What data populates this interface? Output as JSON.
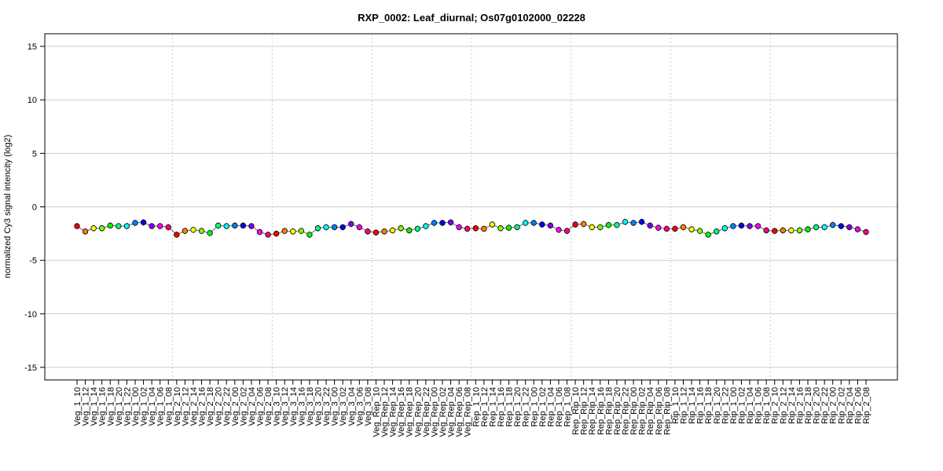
{
  "chart_data": {
    "type": "line",
    "title": "RXP_0002: Leaf_diurnal; Os07g0102000_02228",
    "xlabel": "",
    "ylabel": "normalized Cy3 signal intencity (log2)",
    "ylim": [
      -16,
      16
    ],
    "yticks": [
      -15,
      -10,
      -5,
      0,
      5,
      10,
      15
    ],
    "grid": true,
    "legend": "none",
    "groups": [
      "Veg_1",
      "Veg_2",
      "Veg_3",
      "Veg_Rep",
      "Rep_1",
      "Rep_Rip",
      "Rip_1",
      "Rip_2"
    ],
    "times": [
      "10",
      "12",
      "14",
      "16",
      "18",
      "20",
      "22",
      "00",
      "02",
      "04",
      "06",
      "08"
    ],
    "series": [
      {
        "name": "Veg_1",
        "values": [
          -1.8,
          -2.3,
          -2.0,
          -2.0,
          -1.75,
          -1.8,
          -1.8,
          -1.5,
          -1.45,
          -1.8,
          -1.8,
          -1.9
        ]
      },
      {
        "name": "Veg_2",
        "values": [
          -2.6,
          -2.25,
          -2.15,
          -2.25,
          -2.45,
          -1.75,
          -1.8,
          -1.75,
          -1.75,
          -1.8,
          -2.35,
          -2.6
        ]
      },
      {
        "name": "Veg_3",
        "values": [
          -2.5,
          -2.25,
          -2.3,
          -2.25,
          -2.6,
          -2.0,
          -1.9,
          -1.9,
          -1.9,
          -1.6,
          -1.9,
          -2.3
        ]
      },
      {
        "name": "Veg_Rep",
        "values": [
          -2.4,
          -2.3,
          -2.2,
          -2.0,
          -2.2,
          -2.05,
          -1.8,
          -1.5,
          -1.5,
          -1.45,
          -1.9,
          -2.05
        ]
      },
      {
        "name": "Rep_1",
        "values": [
          -2.0,
          -2.05,
          -1.65,
          -2.0,
          -1.95,
          -1.9,
          -1.5,
          -1.5,
          -1.65,
          -1.75,
          -2.15,
          -2.25
        ]
      },
      {
        "name": "Rep_Rip",
        "values": [
          -1.65,
          -1.6,
          -1.9,
          -1.9,
          -1.7,
          -1.7,
          -1.4,
          -1.5,
          -1.4,
          -1.75,
          -1.95,
          -2.05
        ]
      },
      {
        "name": "Rip_1",
        "values": [
          -2.05,
          -1.9,
          -2.1,
          -2.25,
          -2.6,
          -2.3,
          -2.0,
          -1.8,
          -1.75,
          -1.8,
          -1.8,
          -2.2
        ]
      },
      {
        "name": "Rip_2",
        "values": [
          -2.25,
          -2.2,
          -2.2,
          -2.2,
          -2.1,
          -1.9,
          -1.9,
          -1.7,
          -1.8,
          -1.9,
          -2.1,
          -2.35
        ]
      }
    ]
  }
}
